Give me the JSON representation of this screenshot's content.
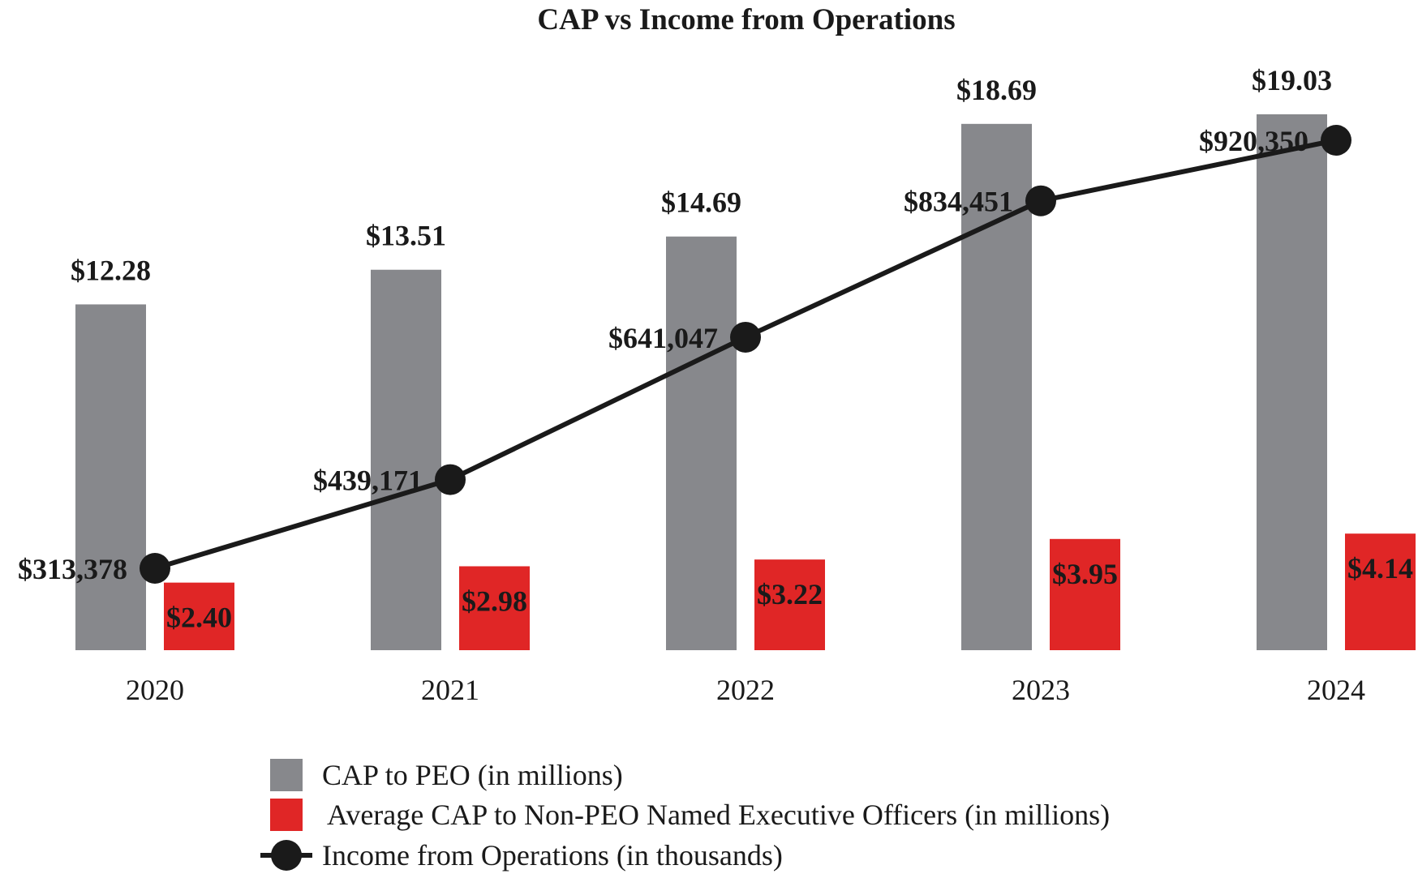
{
  "chart_data": {
    "type": "bar",
    "title": "CAP vs Income from Operations",
    "categories": [
      "2020",
      "2021",
      "2022",
      "2023",
      "2024"
    ],
    "series": [
      {
        "name": "CAP to PEO (in millions)",
        "kind": "bar",
        "color": "#87888c",
        "values": [
          12.28,
          13.51,
          14.69,
          18.69,
          19.03
        ],
        "labels": [
          "$12.28",
          "$13.51",
          "$14.69",
          "$18.69",
          "$19.03"
        ]
      },
      {
        "name": "Average CAP to Non-PEO Named Executive Officers (in millions)",
        "kind": "bar",
        "color": "#e02626",
        "values": [
          2.4,
          2.98,
          3.22,
          3.95,
          4.14
        ],
        "labels": [
          "$2.40",
          "$2.98",
          "$3.22",
          "$3.95",
          "$4.14"
        ]
      },
      {
        "name": "Income from Operations (in thousands)",
        "kind": "line",
        "color": "#1a1a1a",
        "values": [
          313378,
          439171,
          641047,
          834451,
          920350
        ],
        "labels": [
          "$313,378",
          "$439,171",
          "$641,047",
          "$834,451",
          "$920,350"
        ]
      }
    ],
    "bar_axis": {
      "ylim": [
        0,
        19.03
      ]
    },
    "line_axis": {
      "ylim": [
        0,
        1000000
      ]
    },
    "xlabel": "",
    "ylabel": "",
    "grid": false,
    "legend_position": "bottom-center"
  }
}
